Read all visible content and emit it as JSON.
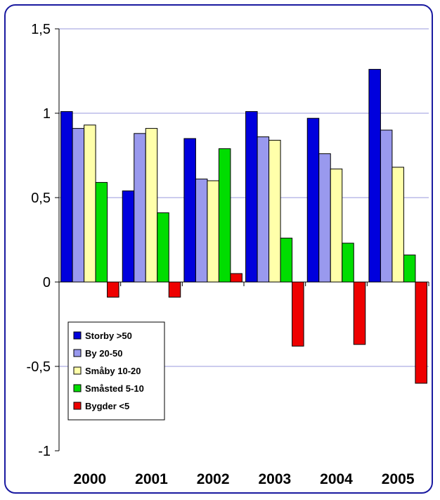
{
  "chart_data": {
    "type": "bar",
    "title": "",
    "xlabel": "",
    "ylabel": "",
    "categories": [
      "2000",
      "2001",
      "2002",
      "2003",
      "2004",
      "2005"
    ],
    "ylim": [
      -1,
      1.5
    ],
    "yticks": [
      -1,
      -0.5,
      0,
      0.5,
      1,
      1.5
    ],
    "ytick_labels": [
      "-1",
      "-0,5",
      "0",
      "0,5",
      "1",
      "1,5"
    ],
    "grid": true,
    "legend_position": "bottom-left",
    "series": [
      {
        "name": "Storby >50",
        "color": "#0000dd",
        "values": [
          1.01,
          0.54,
          0.85,
          1.01,
          0.97,
          1.26
        ]
      },
      {
        "name": "By 20-50",
        "color": "#9999ee",
        "values": [
          0.91,
          0.88,
          0.61,
          0.86,
          0.76,
          0.9
        ]
      },
      {
        "name": "Småby 10-20",
        "color": "#ffffaa",
        "values": [
          0.93,
          0.91,
          0.6,
          0.84,
          0.67,
          0.68
        ]
      },
      {
        "name": "Småsted 5-10",
        "color": "#00dd00",
        "values": [
          0.59,
          0.41,
          0.79,
          0.26,
          0.23,
          0.16
        ]
      },
      {
        "name": "Bygder <5",
        "color": "#ee0000",
        "values": [
          -0.09,
          -0.09,
          0.05,
          -0.38,
          -0.37,
          -0.6
        ]
      }
    ]
  }
}
